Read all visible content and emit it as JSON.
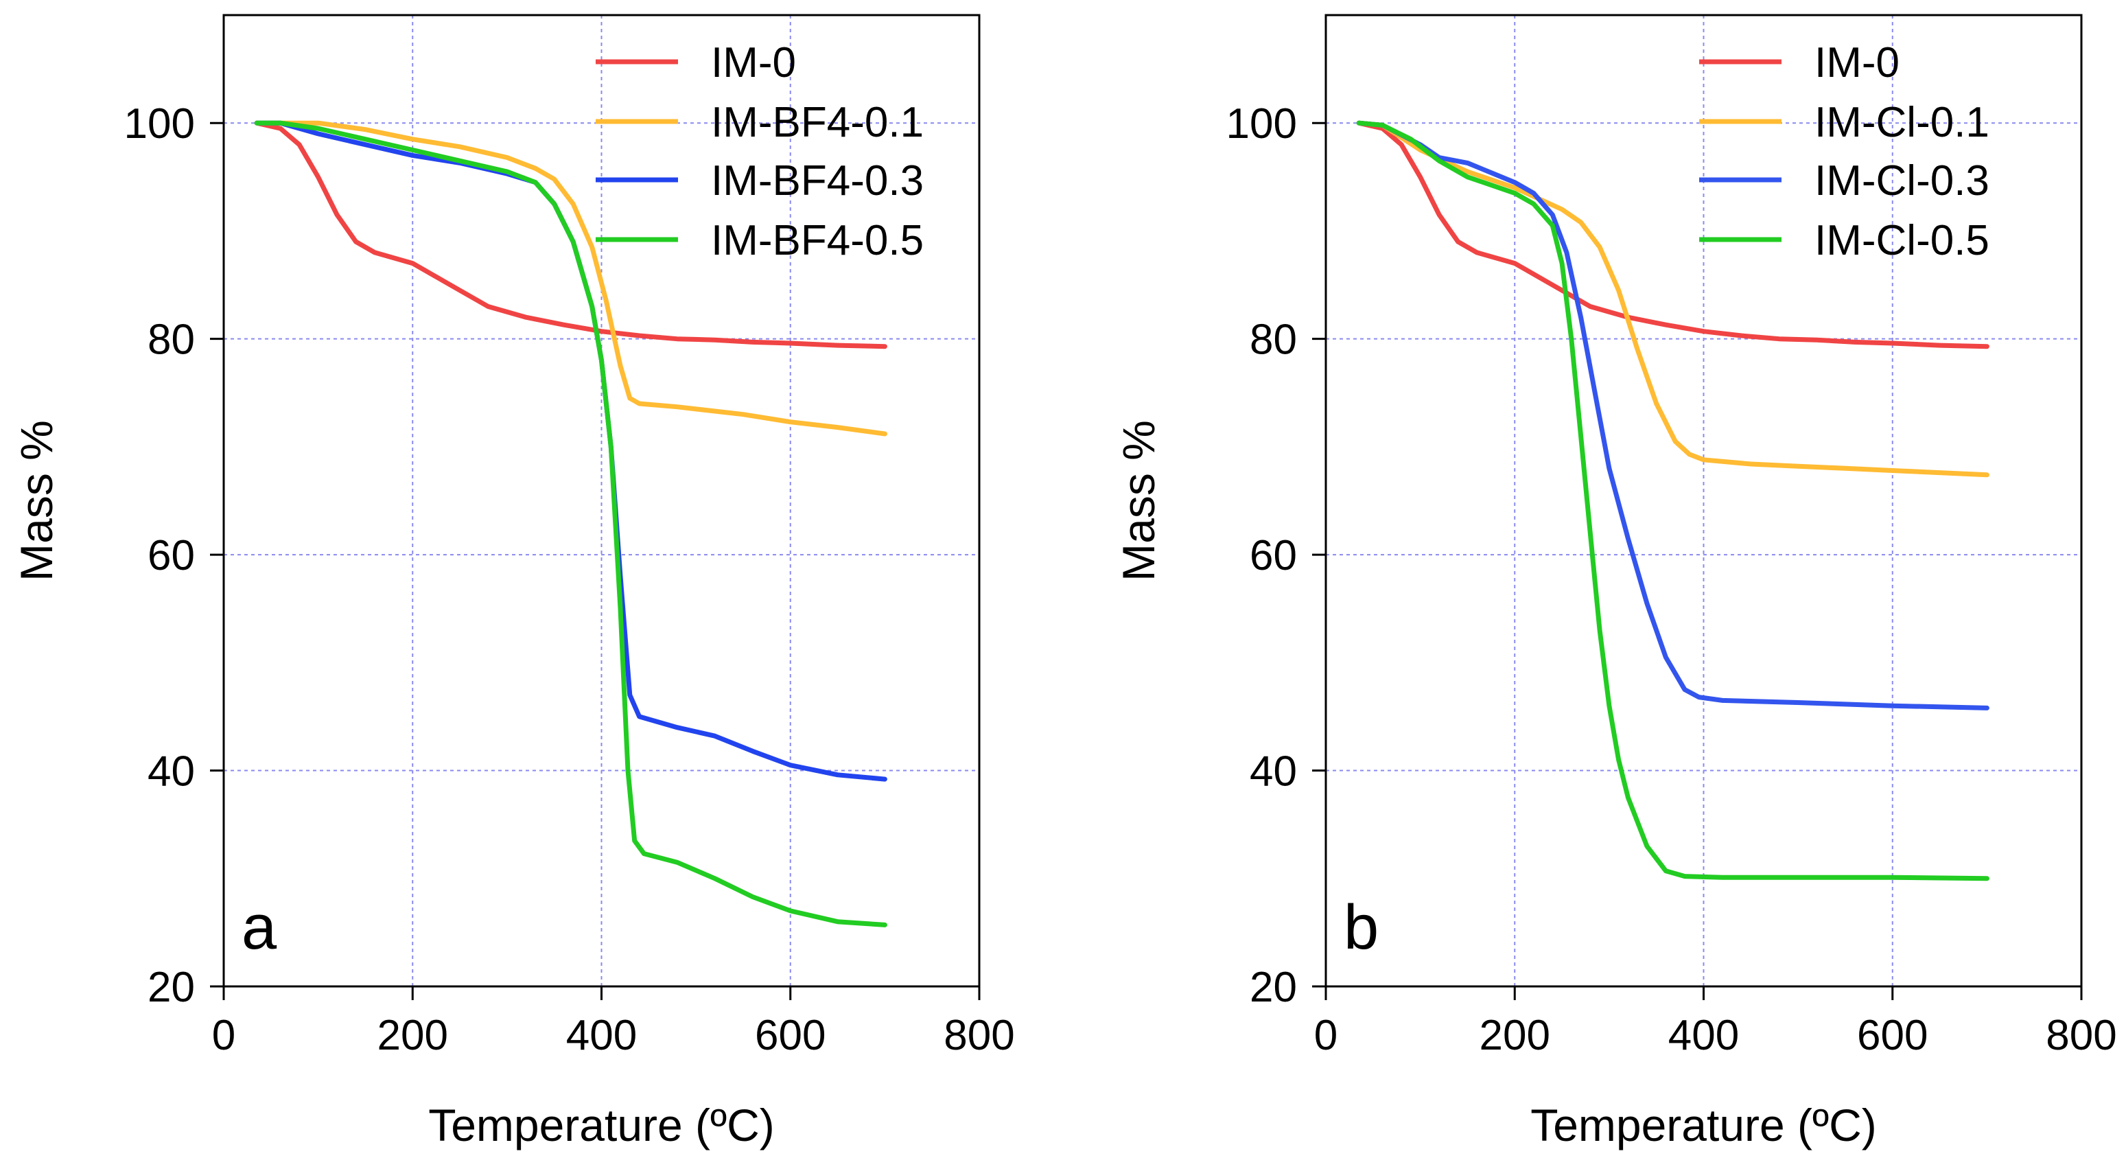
{
  "chart_data": [
    {
      "type": "line",
      "panel": "a",
      "xlabel": "Temperature (ºC)",
      "ylabel": "Mass %",
      "xlim": [
        0,
        800
      ],
      "ylim": [
        20,
        110
      ],
      "xticks": [
        0,
        200,
        400,
        600,
        800
      ],
      "yticks": [
        20,
        40,
        60,
        80,
        100
      ],
      "grid": true,
      "legend_position": "top-right",
      "series": [
        {
          "name": "IM-0",
          "color": "#f04444",
          "x": [
            35,
            60,
            80,
            100,
            120,
            140,
            160,
            200,
            240,
            280,
            320,
            360,
            400,
            440,
            480,
            520,
            560,
            600,
            650,
            700
          ],
          "y": [
            100,
            99.5,
            98,
            95,
            91.5,
            89,
            88,
            87,
            85,
            83,
            82,
            81.3,
            80.7,
            80.3,
            80,
            79.9,
            79.7,
            79.6,
            79.4,
            79.3
          ]
        },
        {
          "name": "IM-BF4-0.1",
          "color": "#ffbb33",
          "x": [
            35,
            100,
            150,
            200,
            250,
            300,
            330,
            350,
            370,
            390,
            405,
            420,
            430,
            440,
            480,
            550,
            600,
            650,
            700
          ],
          "y": [
            100,
            100,
            99.4,
            98.5,
            97.8,
            96.8,
            95.8,
            94.8,
            92.5,
            88.5,
            83.5,
            77.5,
            74.5,
            74,
            73.7,
            73,
            72.3,
            71.8,
            71.2
          ]
        },
        {
          "name": "IM-BF4-0.3",
          "color": "#2244ee",
          "x": [
            35,
            60,
            100,
            150,
            200,
            250,
            300,
            330,
            350,
            370,
            390,
            400,
            410,
            420,
            430,
            440,
            480,
            520,
            560,
            600,
            650,
            700
          ],
          "y": [
            100,
            100,
            99,
            98,
            97,
            96.3,
            95.3,
            94.5,
            92.5,
            89,
            83,
            78,
            70,
            58,
            47,
            45,
            44,
            43.2,
            41.8,
            40.5,
            39.6,
            39.2
          ]
        },
        {
          "name": "IM-BF4-0.5",
          "color": "#22cc22",
          "x": [
            35,
            60,
            100,
            150,
            200,
            250,
            300,
            330,
            350,
            370,
            390,
            400,
            410,
            420,
            428,
            435,
            445,
            480,
            520,
            560,
            600,
            650,
            700
          ],
          "y": [
            100,
            100,
            99.5,
            98.5,
            97.5,
            96.5,
            95.5,
            94.5,
            92.5,
            89,
            83,
            78,
            70,
            55,
            40,
            33.5,
            32.3,
            31.5,
            30,
            28.3,
            27,
            26,
            25.7
          ]
        }
      ]
    },
    {
      "type": "line",
      "panel": "b",
      "xlabel": "Temperature (ºC)",
      "ylabel": "Mass %",
      "xlim": [
        0,
        800
      ],
      "ylim": [
        20,
        110
      ],
      "xticks": [
        0,
        200,
        400,
        600,
        800
      ],
      "yticks": [
        20,
        40,
        60,
        80,
        100
      ],
      "grid": true,
      "legend_position": "top-right",
      "series": [
        {
          "name": "IM-0",
          "color": "#f04444",
          "x": [
            35,
            60,
            80,
            100,
            120,
            140,
            160,
            200,
            240,
            280,
            320,
            360,
            400,
            440,
            480,
            520,
            560,
            600,
            650,
            700
          ],
          "y": [
            100,
            99.5,
            98,
            95,
            91.5,
            89,
            88,
            87,
            85,
            83,
            82,
            81.3,
            80.7,
            80.3,
            80,
            79.9,
            79.7,
            79.6,
            79.4,
            79.3
          ]
        },
        {
          "name": "IM-Cl-0.1",
          "color": "#ffbb33",
          "x": [
            35,
            60,
            100,
            150,
            200,
            230,
            250,
            270,
            290,
            310,
            330,
            350,
            370,
            385,
            400,
            450,
            500,
            550,
            600,
            650,
            700
          ],
          "y": [
            100,
            99.8,
            97.5,
            95.5,
            94,
            92.8,
            92,
            90.8,
            88.5,
            84.5,
            79,
            74,
            70.5,
            69.3,
            68.8,
            68.4,
            68.2,
            68,
            67.8,
            67.6,
            67.4
          ]
        },
        {
          "name": "IM-Cl-0.3",
          "color": "#3355ee",
          "x": [
            35,
            60,
            100,
            120,
            150,
            200,
            220,
            240,
            255,
            270,
            285,
            300,
            320,
            340,
            360,
            380,
            395,
            420,
            500,
            600,
            700
          ],
          "y": [
            100,
            99.8,
            98,
            96.8,
            96.3,
            94.5,
            93.5,
            91.5,
            88,
            82,
            75,
            68,
            61.5,
            55.5,
            50.5,
            47.5,
            46.8,
            46.5,
            46.3,
            46,
            45.8
          ]
        },
        {
          "name": "IM-Cl-0.5",
          "color": "#22cc22",
          "x": [
            35,
            60,
            90,
            120,
            150,
            200,
            220,
            240,
            250,
            260,
            270,
            280,
            290,
            300,
            310,
            320,
            340,
            360,
            380,
            420,
            500,
            600,
            700
          ],
          "y": [
            100,
            99.8,
            98.5,
            96.5,
            95,
            93.5,
            92.5,
            90.5,
            87,
            80,
            71,
            62,
            53,
            46,
            41,
            37.5,
            33,
            30.7,
            30.2,
            30.1,
            30.1,
            30.1,
            30
          ]
        }
      ]
    }
  ]
}
